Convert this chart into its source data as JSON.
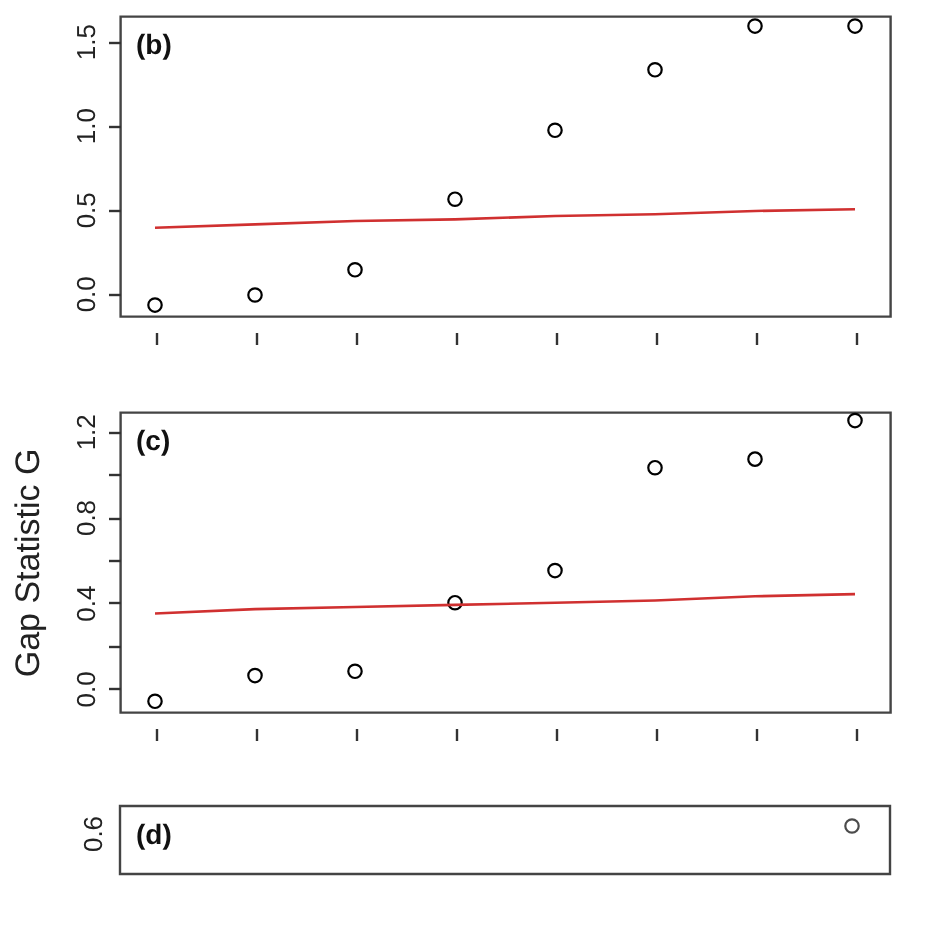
{
  "chart_data": [
    {
      "type": "scatter",
      "annotations": [
        "(b)"
      ],
      "categories": [
        null,
        null,
        null,
        null,
        null,
        null,
        null,
        null
      ],
      "ylim": [
        -0.135,
        1.65
      ],
      "yticks": [
        {
          "value": 0,
          "label": "0.0"
        },
        {
          "value": 0.5,
          "label": "0.5"
        },
        {
          "value": 1,
          "label": "1.0"
        },
        {
          "value": 1.5,
          "label": "1.5"
        }
      ],
      "tick_labels": "y",
      "series": [
        {
          "marker": "circle",
          "color": "#000000",
          "values": [
            -0.07,
            -0.01,
            0.14,
            0.56,
            0.97,
            1.33,
            1.59,
            1.59
          ]
        },
        {
          "type": "line",
          "color": "#d03030",
          "values": [
            0.39,
            0.41,
            0.43,
            0.44,
            0.46,
            0.47,
            0.49,
            0.5
          ]
        }
      ]
    },
    {
      "type": "scatter",
      "annotations": [
        "(c)"
      ],
      "ylabel": "Gap Statistic G",
      "categories": [
        null,
        null,
        null,
        null,
        null,
        null,
        null,
        null
      ],
      "ylim": [
        -0.11,
        1.29
      ],
      "yticks": [
        {
          "value": 0,
          "label": "0.0"
        },
        {
          "value": 0.2,
          "label": null
        },
        {
          "value": 0.4,
          "label": "0.4"
        },
        {
          "value": 0.6,
          "label": null
        },
        {
          "value": 0.8,
          "label": "0.8"
        },
        {
          "value": 1,
          "label": null
        },
        {
          "value": 1.2,
          "label": "1.2"
        }
      ],
      "tick_labels": "y",
      "series": [
        {
          "marker": "circle",
          "color": "#000000",
          "values": [
            -0.06,
            0.06,
            0.08,
            0.4,
            0.55,
            1.03,
            1.07,
            1.25
          ]
        },
        {
          "type": "line",
          "color": "#d03030",
          "values": [
            0.35,
            0.37,
            0.38,
            0.39,
            0.4,
            0.41,
            0.43,
            0.44
          ]
        }
      ]
    },
    {
      "type": "other",
      "annotations": [
        "(d)",
        "0.6"
      ]
    }
  ]
}
